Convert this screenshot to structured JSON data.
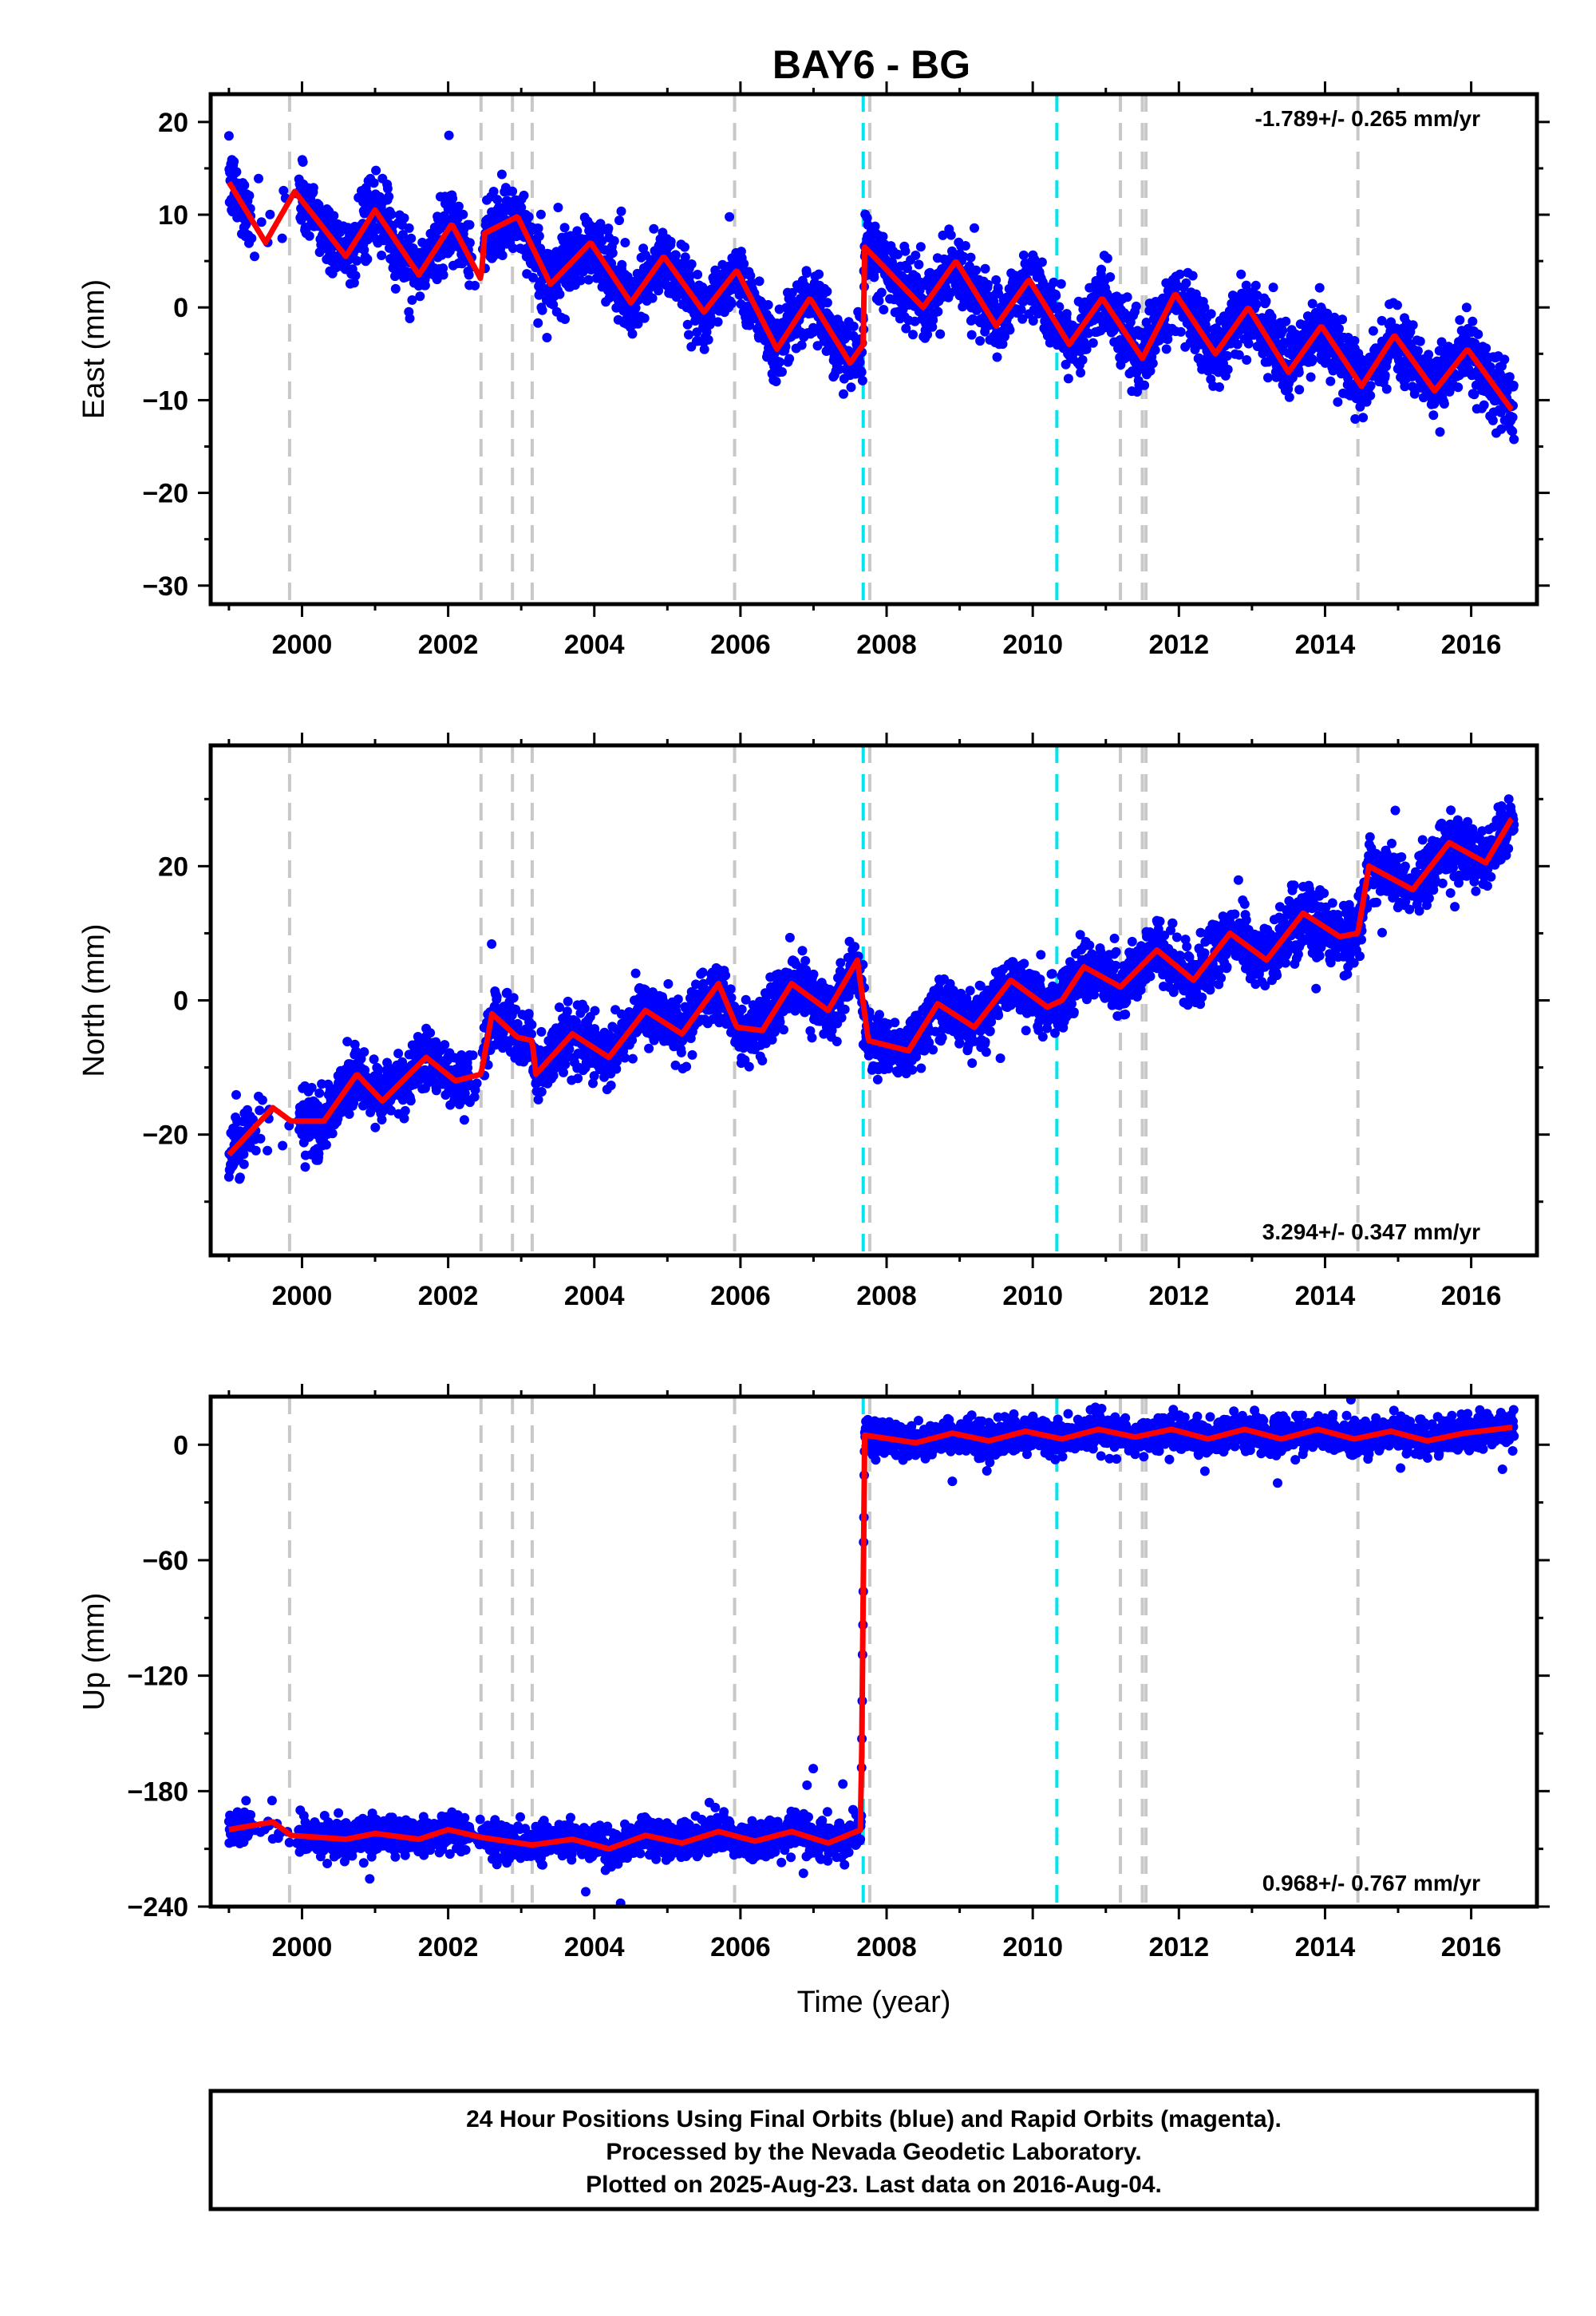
{
  "title": "BAY6 - BG",
  "colors": {
    "data_points": "#0000ff",
    "model": "#ff0000",
    "equipment_change": "#c8c8c8",
    "earthquake": "#00e5ee",
    "frame": "#000000"
  },
  "footer": {
    "line1": "24 Hour Positions Using Final Orbits (blue) and Rapid Orbits (magenta).",
    "line2": "Processed by the Nevada Geodetic Laboratory.",
    "line3": "Plotted on 2025-Aug-23. Last data on 2016-Aug-04."
  },
  "chart_data": [
    {
      "type": "scatter",
      "panel": "east",
      "ylabel": "East (mm)",
      "xlabel": "",
      "xlim": [
        1998.75,
        2016.9
      ],
      "ylim": [
        -32,
        23
      ],
      "yticks": [
        20,
        10,
        0,
        -10,
        -20,
        -30
      ],
      "yticks_minor": [
        25,
        15,
        5,
        -5,
        -15,
        -25
      ],
      "xticks": [
        "2000",
        "2002",
        "2004",
        "2006",
        "2008",
        "2010",
        "2012",
        "2014",
        "2016"
      ],
      "rate_text": "-1.789+/- 0.265 mm/yr",
      "rate_position": "top-right",
      "equipment_change_lines": [
        1999.83,
        2002.45,
        2002.88,
        2003.15,
        2005.92,
        2007.77,
        2011.2,
        2011.5,
        2011.55,
        2014.45
      ],
      "earthquake_lines": [
        2007.68,
        2010.33
      ],
      "series_params": {
        "offset": 9.6,
        "rate": -1.2,
        "amplitude": 3.0,
        "phase_year": 0.9,
        "noise_sd": 1.8,
        "steps": [
          [
            2002.45,
            2.0
          ],
          [
            2007.68,
            11.0
          ]
        ]
      },
      "model_knots": [
        [
          1999.0,
          13.5
        ],
        [
          1999.5,
          7.0
        ],
        [
          1999.9,
          12.5
        ],
        [
          2000.6,
          5.5
        ],
        [
          2001.0,
          10.5
        ],
        [
          2001.6,
          3.5
        ],
        [
          2002.05,
          9.0
        ],
        [
          2002.45,
          3.0
        ],
        [
          2002.5,
          8.0
        ],
        [
          2002.95,
          9.8
        ],
        [
          2003.4,
          2.5
        ],
        [
          2003.95,
          7.0
        ],
        [
          2004.5,
          0.5
        ],
        [
          2004.95,
          5.5
        ],
        [
          2005.5,
          -0.5
        ],
        [
          2005.95,
          4.0
        ],
        [
          2006.5,
          -4.5
        ],
        [
          2006.95,
          1.0
        ],
        [
          2007.5,
          -6.0
        ],
        [
          2007.68,
          -4.0
        ],
        [
          2007.7,
          6.5
        ],
        [
          2008.5,
          0.0
        ],
        [
          2008.95,
          5.0
        ],
        [
          2009.5,
          -2.0
        ],
        [
          2009.95,
          3.0
        ],
        [
          2010.5,
          -4.0
        ],
        [
          2010.95,
          1.0
        ],
        [
          2011.5,
          -5.5
        ],
        [
          2011.95,
          1.5
        ],
        [
          2012.5,
          -5.0
        ],
        [
          2012.95,
          0.0
        ],
        [
          2013.5,
          -7.0
        ],
        [
          2013.95,
          -2.0
        ],
        [
          2014.5,
          -8.5
        ],
        [
          2014.95,
          -3.0
        ],
        [
          2015.5,
          -9.0
        ],
        [
          2015.95,
          -4.5
        ],
        [
          2016.55,
          -11.0
        ]
      ]
    },
    {
      "type": "scatter",
      "panel": "north",
      "ylabel": "North (mm)",
      "xlabel": "",
      "xlim": [
        1998.75,
        2016.9
      ],
      "ylim": [
        -38,
        38
      ],
      "yticks": [
        20,
        0,
        -20
      ],
      "yticks_minor": [
        30,
        10,
        -10,
        -30
      ],
      "xticks": [
        "2000",
        "2002",
        "2004",
        "2006",
        "2008",
        "2010",
        "2012",
        "2014",
        "2016"
      ],
      "rate_text": "3.294+/- 0.347 mm/yr",
      "rate_position": "bottom-right",
      "equipment_change_lines": [
        1999.83,
        2002.45,
        2002.88,
        2003.15,
        2005.92,
        2007.77,
        2011.2,
        2011.5,
        2011.55,
        2014.45
      ],
      "earthquake_lines": [
        2007.68,
        2010.33
      ],
      "series_params": {
        "offset": -23.0,
        "rate": 2.2,
        "amplitude": 2.5,
        "phase_year": 0.6,
        "noise_sd": 2.2,
        "steps": [
          [
            2002.45,
            5.0
          ],
          [
            2007.68,
            -10.0
          ],
          [
            2014.45,
            8.0
          ],
          [
            2016.3,
            5.0
          ]
        ]
      },
      "model_knots": [
        [
          1999.0,
          -23.0
        ],
        [
          1999.6,
          -16.0
        ],
        [
          1999.85,
          -18.0
        ],
        [
          2000.3,
          -18.0
        ],
        [
          2000.75,
          -11.0
        ],
        [
          2001.1,
          -15.0
        ],
        [
          2001.7,
          -8.5
        ],
        [
          2002.1,
          -12.0
        ],
        [
          2002.45,
          -11.0
        ],
        [
          2002.6,
          -2.0
        ],
        [
          2002.95,
          -5.5
        ],
        [
          2003.15,
          -6.0
        ],
        [
          2003.2,
          -11.0
        ],
        [
          2003.7,
          -5.0
        ],
        [
          2004.2,
          -8.5
        ],
        [
          2004.7,
          -1.5
        ],
        [
          2005.2,
          -5.0
        ],
        [
          2005.7,
          2.5
        ],
        [
          2005.95,
          -4.0
        ],
        [
          2006.3,
          -4.5
        ],
        [
          2006.7,
          2.5
        ],
        [
          2007.2,
          -1.5
        ],
        [
          2007.6,
          6.0
        ],
        [
          2007.75,
          -6.0
        ],
        [
          2008.3,
          -7.5
        ],
        [
          2008.7,
          -0.5
        ],
        [
          2009.2,
          -4.0
        ],
        [
          2009.7,
          3.0
        ],
        [
          2010.2,
          -1.0
        ],
        [
          2010.4,
          0.0
        ],
        [
          2010.7,
          5.0
        ],
        [
          2011.2,
          2.0
        ],
        [
          2011.7,
          7.5
        ],
        [
          2012.2,
          3.0
        ],
        [
          2012.7,
          10.0
        ],
        [
          2013.2,
          6.0
        ],
        [
          2013.7,
          13.0
        ],
        [
          2014.2,
          9.5
        ],
        [
          2014.45,
          10.0
        ],
        [
          2014.6,
          20.0
        ],
        [
          2015.2,
          16.5
        ],
        [
          2015.7,
          23.5
        ],
        [
          2016.2,
          20.5
        ],
        [
          2016.55,
          27.0
        ]
      ]
    },
    {
      "type": "scatter",
      "panel": "up",
      "ylabel": "Up (mm)",
      "xlabel": "Time (year)",
      "xlim": [
        1998.75,
        2016.9
      ],
      "ylim": [
        -240,
        25
      ],
      "yticks": [
        0,
        -60,
        -120,
        -180,
        -240
      ],
      "yticks_minor": [
        -30,
        -90,
        -150,
        -210
      ],
      "xticks": [
        "2000",
        "2002",
        "2004",
        "2006",
        "2008",
        "2010",
        "2012",
        "2014",
        "2016"
      ],
      "rate_text": "0.968+/- 0.767 mm/yr",
      "rate_position": "bottom-right",
      "equipment_change_lines": [
        1999.83,
        2002.45,
        2002.88,
        2003.15,
        2005.92,
        2007.77,
        2011.2,
        2011.5,
        2011.55,
        2014.45
      ],
      "earthquake_lines": [
        2007.68,
        2010.33
      ],
      "series_params": {
        "offset": -202.0,
        "rate": 0.6,
        "amplitude": 3.0,
        "phase_year": 0.5,
        "noise_sd": 4.5,
        "steps": [
          [
            2007.68,
            206.0
          ]
        ]
      },
      "model_knots": [
        [
          1999.0,
          -200.0
        ],
        [
          1999.6,
          -196.0
        ],
        [
          1999.85,
          -203.0
        ],
        [
          2000.6,
          -205.0
        ],
        [
          2001.0,
          -202.0
        ],
        [
          2001.6,
          -205.0
        ],
        [
          2002.0,
          -200.0
        ],
        [
          2002.45,
          -204.0
        ],
        [
          2003.15,
          -208.0
        ],
        [
          2003.7,
          -205.0
        ],
        [
          2004.2,
          -210.0
        ],
        [
          2004.7,
          -203.0
        ],
        [
          2005.2,
          -207.0
        ],
        [
          2005.7,
          -201.0
        ],
        [
          2006.2,
          -206.0
        ],
        [
          2006.7,
          -201.0
        ],
        [
          2007.2,
          -207.0
        ],
        [
          2007.65,
          -200.0
        ],
        [
          2007.7,
          5.0
        ],
        [
          2008.4,
          1.0
        ],
        [
          2008.9,
          6.0
        ],
        [
          2009.4,
          2.0
        ],
        [
          2009.9,
          7.0
        ],
        [
          2010.4,
          3.0
        ],
        [
          2010.9,
          8.0
        ],
        [
          2011.4,
          4.0
        ],
        [
          2011.9,
          8.0
        ],
        [
          2012.4,
          3.0
        ],
        [
          2012.9,
          8.0
        ],
        [
          2013.4,
          3.0
        ],
        [
          2013.9,
          8.0
        ],
        [
          2014.4,
          3.0
        ],
        [
          2014.9,
          7.0
        ],
        [
          2015.4,
          2.0
        ],
        [
          2015.9,
          6.0
        ],
        [
          2016.55,
          9.0
        ]
      ]
    }
  ]
}
